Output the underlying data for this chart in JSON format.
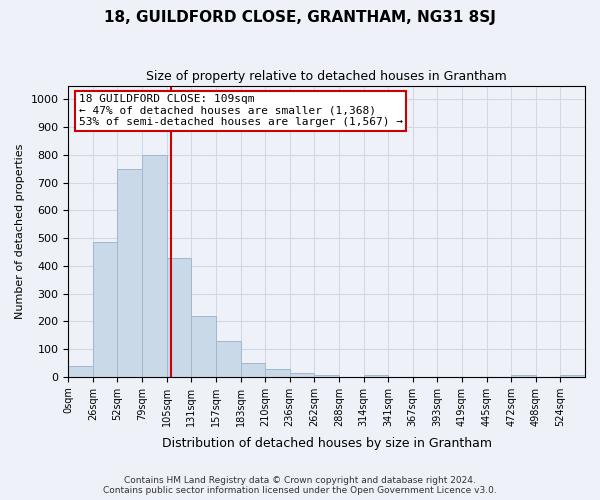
{
  "title": "18, GUILDFORD CLOSE, GRANTHAM, NG31 8SJ",
  "subtitle": "Size of property relative to detached houses in Grantham",
  "xlabel": "Distribution of detached houses by size in Grantham",
  "ylabel": "Number of detached properties",
  "footer_line1": "Contains HM Land Registry data © Crown copyright and database right 2024.",
  "footer_line2": "Contains public sector information licensed under the Open Government Licence v3.0.",
  "bar_labels": [
    "0sqm",
    "26sqm",
    "52sqm",
    "79sqm",
    "105sqm",
    "131sqm",
    "157sqm",
    "183sqm",
    "210sqm",
    "236sqm",
    "262sqm",
    "288sqm",
    "314sqm",
    "341sqm",
    "367sqm",
    "393sqm",
    "419sqm",
    "445sqm",
    "472sqm",
    "498sqm",
    "524sqm"
  ],
  "bar_values": [
    40,
    485,
    750,
    800,
    430,
    220,
    130,
    50,
    27,
    15,
    8,
    0,
    5,
    0,
    0,
    0,
    0,
    0,
    5,
    0,
    5
  ],
  "bar_color": "#c9d9e8",
  "bar_edge_color": "#a0b8d0",
  "grid_color": "#d0d8e8",
  "background_color": "#eef2f8",
  "axes_background": "#eef2f8",
  "vline_x": 109,
  "vline_color": "#cc0000",
  "ylim": [
    0,
    1050
  ],
  "yticks": [
    0,
    100,
    200,
    300,
    400,
    500,
    600,
    700,
    800,
    900,
    1000
  ],
  "annotation_text": "18 GUILDFORD CLOSE: 109sqm\n← 47% of detached houses are smaller (1,368)\n53% of semi-detached houses are larger (1,567) →",
  "annotation_box_color": "#ffffff",
  "annotation_border_color": "#cc0000",
  "bin_width": 26,
  "property_size": 109
}
